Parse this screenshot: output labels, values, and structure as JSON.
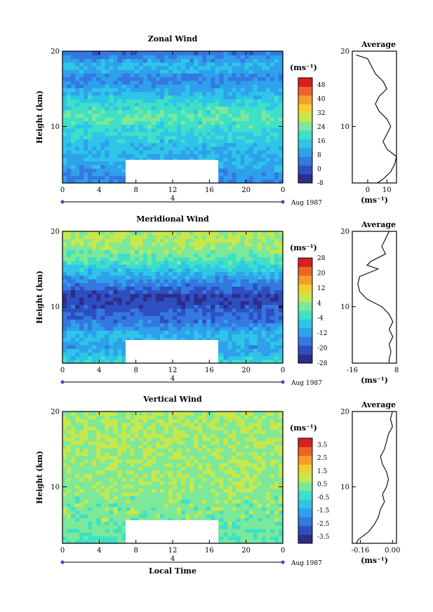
{
  "figure": {
    "xlabel": "Local Time",
    "avg_title": "Average",
    "unit_label": "(ms⁻¹)",
    "avg_unit_label": "(ms⁻¹)",
    "date_label": "Aug 1987",
    "day_label": "4"
  },
  "chart_data": [
    {
      "type": "heatmap",
      "title": "Zonal Wind",
      "ylabel": "Height (km)",
      "xlabel": "",
      "xlim": [
        0,
        24
      ],
      "xticks": [
        "0",
        "4",
        "8",
        "12",
        "16",
        "20",
        "0"
      ],
      "ylim": [
        2.5,
        20
      ],
      "yticks": [
        "10",
        "20"
      ],
      "colorbar": {
        "min": -8,
        "max": 52,
        "ticks": [
          "48",
          "40",
          "32",
          "24",
          "16",
          "8",
          "0",
          "-8"
        ]
      },
      "field_levels": [
        6,
        10,
        12,
        14,
        18,
        22,
        18,
        12,
        6,
        14,
        4
      ],
      "profile_heights": [
        19.5,
        19,
        18,
        17,
        16,
        15,
        14,
        13,
        12,
        11,
        10,
        9,
        8,
        7,
        6,
        5,
        4,
        3,
        2.5
      ],
      "profile_values": [
        -6,
        0,
        2,
        4,
        8,
        10,
        6,
        4,
        6,
        10,
        12,
        10,
        8,
        10,
        15,
        14,
        12,
        8,
        5
      ],
      "avg_xlim": [
        -8,
        15
      ],
      "avg_xticks": [
        "0",
        "10"
      ]
    },
    {
      "type": "heatmap",
      "title": "Meridional Wind",
      "ylabel": "Height (km)",
      "xlabel": "",
      "xlim": [
        0,
        24
      ],
      "xticks": [
        "0",
        "4",
        "8",
        "12",
        "16",
        "20",
        "0"
      ],
      "ylim": [
        2.5,
        20
      ],
      "yticks": [
        "10",
        "20"
      ],
      "colorbar": {
        "min": -28,
        "max": 28,
        "ticks": [
          "28",
          "20",
          "12",
          "4",
          "-4",
          "-12",
          "-20",
          "-28"
        ]
      },
      "field_levels": [
        -4,
        -12,
        -8,
        -16,
        -20,
        -24,
        -16,
        -8,
        0,
        4,
        6
      ],
      "profile_heights": [
        20,
        19,
        18,
        17,
        16,
        15.5,
        15,
        14,
        13,
        12,
        11,
        10,
        9,
        8,
        7,
        6,
        5,
        4,
        3,
        2.5
      ],
      "profile_values": [
        4,
        2,
        0,
        2,
        -6,
        -8,
        -2,
        -12,
        -13,
        -12,
        -8,
        0,
        4,
        6,
        4,
        6,
        4,
        5,
        4,
        4
      ],
      "avg_xlim": [
        -16,
        8
      ],
      "avg_xticks": [
        "-16",
        "8"
      ]
    },
    {
      "type": "heatmap",
      "title": "Vertical Wind",
      "ylabel": "Height (km)",
      "xlabel": "Local Time",
      "xlim": [
        0,
        24
      ],
      "xticks": [
        "0",
        "4",
        "8",
        "12",
        "16",
        "20",
        "0"
      ],
      "ylim": [
        2.5,
        20
      ],
      "yticks": [
        "10",
        "20"
      ],
      "colorbar": {
        "min": -4,
        "max": 4,
        "ticks": [
          "3.5",
          "2.5",
          "1.5",
          "0.5",
          "-0.5",
          "-1.5",
          "-2.5",
          "-3.5"
        ]
      },
      "field_levels": [
        0,
        0.2,
        0.3,
        0.4,
        0.5,
        0.5,
        0.6,
        0.6,
        0.7,
        0.7,
        0.8
      ],
      "profile_heights": [
        20,
        19,
        18,
        17,
        16,
        15,
        14,
        13,
        12,
        11,
        10,
        9,
        8,
        7,
        6,
        5,
        4,
        3,
        2.5
      ],
      "profile_values": [
        0.0,
        -0.01,
        0.0,
        -0.02,
        -0.03,
        -0.04,
        -0.06,
        -0.05,
        -0.03,
        -0.02,
        -0.03,
        -0.05,
        -0.04,
        -0.06,
        -0.07,
        -0.09,
        -0.12,
        -0.17,
        -0.18
      ],
      "avg_xlim": [
        -0.2,
        0.02
      ],
      "avg_xticks": [
        "-0.16",
        "0.00"
      ]
    }
  ]
}
